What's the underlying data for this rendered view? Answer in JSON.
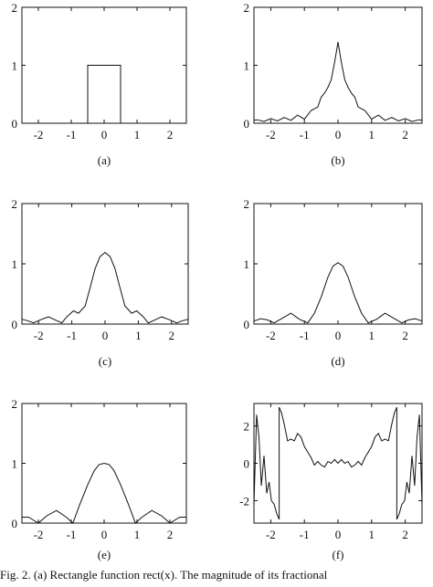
{
  "caption": "Fig. 2.   (a) Rectangle function rect(x). The magnitude of its fractional",
  "panels": [
    {
      "label": "(a)",
      "yticks": [
        "0",
        "1",
        "2"
      ],
      "xticks": [
        "-2",
        "-1",
        "0",
        "1",
        "2"
      ]
    },
    {
      "label": "(b)",
      "yticks": [
        "0",
        "1",
        "2"
      ],
      "xticks": [
        "-2",
        "-1",
        "0",
        "1",
        "2"
      ]
    },
    {
      "label": "(c)",
      "yticks": [
        "0",
        "1",
        "2"
      ],
      "xticks": [
        "-2",
        "-1",
        "0",
        "1",
        "2"
      ]
    },
    {
      "label": "(d)",
      "yticks": [
        "0",
        "1",
        "2"
      ],
      "xticks": [
        "-2",
        "-1",
        "0",
        "1",
        "2"
      ]
    },
    {
      "label": "(e)",
      "yticks": [
        "0",
        "1",
        "2"
      ],
      "xticks": [
        "-2",
        "-1",
        "0",
        "1",
        "2"
      ]
    },
    {
      "label": "(f)",
      "yticks": [
        "2",
        "0",
        "-2"
      ],
      "xticks": [
        "-2",
        "-1",
        "0",
        "1",
        "2"
      ]
    }
  ],
  "chart_data": [
    {
      "type": "line",
      "panel": "(a)",
      "xlim": [
        -2.5,
        2.5
      ],
      "ylim": [
        0,
        2
      ],
      "x": [
        -2.5,
        -0.5,
        -0.5,
        0.5,
        0.5,
        2.5
      ],
      "y": [
        0,
        0,
        1,
        1,
        0,
        0
      ]
    },
    {
      "type": "line",
      "panel": "(b)",
      "xlim": [
        -2.5,
        2.5
      ],
      "ylim": [
        0,
        2
      ],
      "x": [
        -2.5,
        -2.4,
        -2.2,
        -2.0,
        -1.8,
        -1.6,
        -1.4,
        -1.2,
        -1.0,
        -0.8,
        -0.6,
        -0.5,
        -0.4,
        -0.3,
        -0.2,
        -0.1,
        0.0,
        0.1,
        0.2,
        0.3,
        0.4,
        0.5,
        0.6,
        0.8,
        1.0,
        1.2,
        1.4,
        1.6,
        1.8,
        2.0,
        2.2,
        2.4,
        2.5
      ],
      "y": [
        0.05,
        0.06,
        0.03,
        0.08,
        0.04,
        0.1,
        0.05,
        0.14,
        0.07,
        0.22,
        0.28,
        0.45,
        0.52,
        0.62,
        0.75,
        1.05,
        1.4,
        1.05,
        0.75,
        0.62,
        0.52,
        0.45,
        0.28,
        0.22,
        0.07,
        0.14,
        0.05,
        0.1,
        0.04,
        0.08,
        0.03,
        0.06,
        0.05
      ]
    },
    {
      "type": "line",
      "panel": "(c)",
      "xlim": [
        -2.5,
        2.5
      ],
      "ylim": [
        0,
        2
      ],
      "x": [
        -2.5,
        -2.3,
        -2.15,
        -1.9,
        -1.7,
        -1.5,
        -1.3,
        -1.15,
        -0.95,
        -0.8,
        -0.6,
        -0.45,
        -0.3,
        -0.15,
        0.0,
        0.15,
        0.3,
        0.45,
        0.6,
        0.8,
        0.95,
        1.15,
        1.3,
        1.5,
        1.7,
        1.9,
        2.15,
        2.3,
        2.5
      ],
      "y": [
        0.08,
        0.05,
        0.02,
        0.08,
        0.12,
        0.07,
        0.02,
        0.12,
        0.22,
        0.18,
        0.3,
        0.6,
        0.92,
        1.12,
        1.19,
        1.12,
        0.92,
        0.6,
        0.3,
        0.18,
        0.22,
        0.12,
        0.02,
        0.07,
        0.12,
        0.08,
        0.02,
        0.05,
        0.08
      ]
    },
    {
      "type": "line",
      "panel": "(d)",
      "xlim": [
        -2.5,
        2.5
      ],
      "ylim": [
        0,
        2
      ],
      "x": [
        -2.5,
        -2.3,
        -2.1,
        -1.9,
        -1.65,
        -1.4,
        -1.15,
        -0.9,
        -0.7,
        -0.5,
        -0.3,
        -0.15,
        0.0,
        0.15,
        0.3,
        0.5,
        0.7,
        0.9,
        1.15,
        1.4,
        1.65,
        1.9,
        2.1,
        2.3,
        2.5
      ],
      "y": [
        0.05,
        0.09,
        0.07,
        0.02,
        0.1,
        0.18,
        0.08,
        0.02,
        0.18,
        0.45,
        0.78,
        0.96,
        1.02,
        0.96,
        0.78,
        0.45,
        0.18,
        0.02,
        0.08,
        0.18,
        0.1,
        0.02,
        0.07,
        0.09,
        0.05
      ]
    },
    {
      "type": "line",
      "panel": "(e)",
      "xlim": [
        -2.5,
        2.5
      ],
      "ylim": [
        0,
        2
      ],
      "x": [
        -2.5,
        -2.3,
        -2.0,
        -1.75,
        -1.45,
        -1.15,
        -0.95,
        -0.75,
        -0.5,
        -0.3,
        -0.15,
        0.0,
        0.15,
        0.3,
        0.5,
        0.75,
        0.95,
        1.15,
        1.45,
        1.75,
        2.0,
        2.3,
        2.5
      ],
      "y": [
        0.1,
        0.1,
        0.0,
        0.12,
        0.21,
        0.1,
        0.0,
        0.3,
        0.64,
        0.88,
        0.98,
        1.0,
        0.98,
        0.88,
        0.64,
        0.3,
        0.0,
        0.1,
        0.21,
        0.12,
        0.0,
        0.1,
        0.1
      ]
    },
    {
      "type": "line",
      "panel": "(f)",
      "xlim": [
        -2.5,
        2.5
      ],
      "ylim": [
        -3.2,
        3.2
      ],
      "x": [
        -2.5,
        -2.42,
        -2.35,
        -2.28,
        -2.2,
        -2.12,
        -2.05,
        -1.98,
        -1.9,
        -1.82,
        -1.75,
        -1.75,
        -1.68,
        -1.6,
        -1.5,
        -1.4,
        -1.3,
        -1.2,
        -1.1,
        -1.0,
        -0.9,
        -0.8,
        -0.7,
        -0.6,
        -0.5,
        -0.4,
        -0.3,
        -0.2,
        -0.1,
        0.0,
        0.1,
        0.2,
        0.3,
        0.4,
        0.5,
        0.6,
        0.7,
        0.8,
        0.9,
        1.0,
        1.1,
        1.2,
        1.3,
        1.4,
        1.5,
        1.6,
        1.68,
        1.75,
        1.75,
        1.82,
        1.9,
        1.98,
        2.05,
        2.12,
        2.2,
        2.28,
        2.35,
        2.42,
        2.5
      ],
      "y": [
        -2.2,
        2.6,
        1.4,
        -1.2,
        0.4,
        -1.6,
        -1.0,
        -2.0,
        -2.2,
        -2.7,
        -3.0,
        3.0,
        2.7,
        2.1,
        1.2,
        1.3,
        1.2,
        1.6,
        1.4,
        0.9,
        0.6,
        0.3,
        -0.1,
        0.1,
        -0.1,
        -0.2,
        0.1,
        0.0,
        0.2,
        0.0,
        0.2,
        0.0,
        0.1,
        -0.2,
        -0.1,
        0.1,
        -0.1,
        0.3,
        0.6,
        0.9,
        1.4,
        1.6,
        1.2,
        1.3,
        1.2,
        2.1,
        2.7,
        3.0,
        -3.0,
        -2.7,
        -2.2,
        -2.0,
        -1.0,
        -1.6,
        0.4,
        -1.2,
        1.4,
        2.6,
        -2.2
      ]
    }
  ]
}
